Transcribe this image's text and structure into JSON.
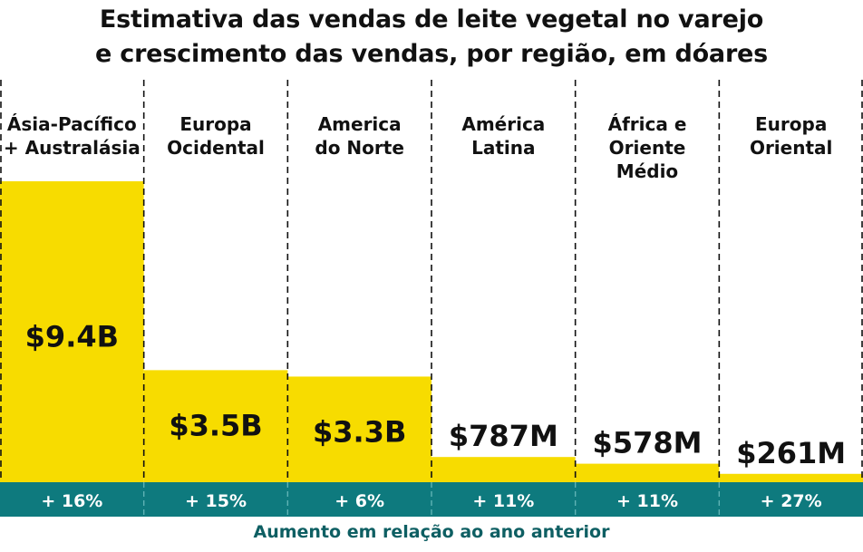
{
  "title_lines": [
    "Estimativa das vendas de leite vegetal no varejo",
    "e crescimento das vendas, por região, em dóares"
  ],
  "footnote": "Aumento em relação ao ano anterior",
  "colors": {
    "bar": "#f7dc00",
    "growth_band": "#0e7a7e",
    "growth_text": "#ffffff",
    "footnote": "#0e5f63",
    "text": "#111111",
    "divider": "#111111"
  },
  "chart_data": {
    "type": "bar",
    "title": "Estimativa das vendas de leite vegetal no varejo e crescimento das vendas, por região, em dóares",
    "categories": [
      [
        "Ásia-Pacífico",
        "+ Australásia"
      ],
      [
        "Europa",
        "Ocidental"
      ],
      [
        "America",
        "do Norte"
      ],
      [
        "América",
        "Latina"
      ],
      [
        "África e",
        "Oriente",
        "Médio"
      ],
      [
        "Europa",
        "Oriental"
      ]
    ],
    "values": [
      9.4,
      3.5,
      3.3,
      0.787,
      0.578,
      0.261
    ],
    "value_unit": "billion USD",
    "value_labels": [
      "$9.4B",
      "$3.5B",
      "$3.3B",
      "$787M",
      "$578M",
      "$261M"
    ],
    "growth_labels": [
      "+ 16%",
      "+ 15%",
      "+ 6%",
      "+ 11%",
      "+ 11%",
      "+ 27%"
    ],
    "growth_values": [
      16,
      15,
      6,
      11,
      11,
      27
    ],
    "ylim": [
      0,
      9.4
    ],
    "grid": false,
    "legend": "none"
  }
}
